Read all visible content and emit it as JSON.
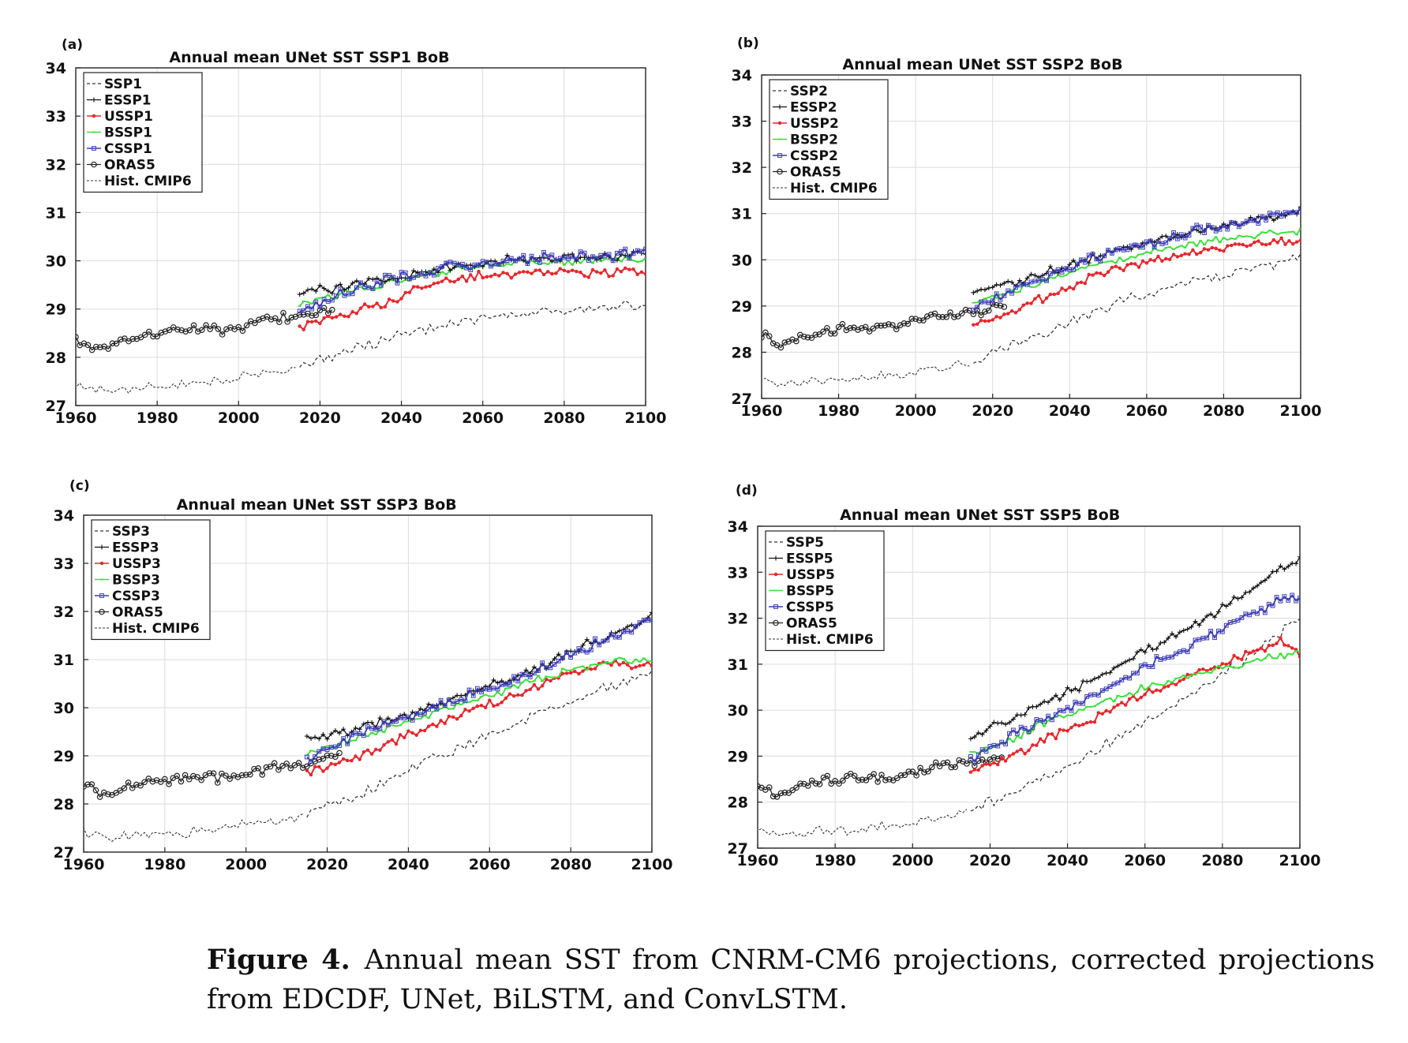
{
  "colors": {
    "scenario": "#333333",
    "edcdf": "#111111",
    "unet": "#e8262b",
    "bilstm": "#39e039",
    "convlstm": "#3c3cb8",
    "oras5": "#222222",
    "hist": "#333333",
    "grid": "#dcdcdc"
  },
  "caption": {
    "label": "Figure 4.",
    "text": "Annual mean SST from CNRM-CM6 projections, corrected projections from EDCDF, UNet, BiLSTM, and ConvLSTM."
  },
  "chart_data": [
    {
      "panel": "(a)",
      "title": "Annual mean UNet SST SSP1 BoB",
      "type": "line",
      "xlim": [
        1960,
        2100
      ],
      "ylim": [
        27,
        34
      ],
      "xticks": [
        1960,
        1980,
        2000,
        2020,
        2040,
        2060,
        2080,
        2100
      ],
      "yticks": [
        27,
        28,
        29,
        30,
        31,
        32,
        33,
        34
      ],
      "grid": true,
      "legend_position": "top-left",
      "legend": [
        "SSP1",
        "ESSP1",
        "USSP1",
        "BSSP1",
        "CSSP1",
        "ORAS5",
        "Hist. CMIP6"
      ],
      "series": [
        {
          "name": "SSP1",
          "x": [
            2015,
            2025,
            2035,
            2045,
            2055,
            2065,
            2075,
            2085,
            2095,
            2100
          ],
          "values": [
            27.8,
            28.1,
            28.35,
            28.55,
            28.75,
            28.85,
            28.95,
            29.0,
            29.05,
            29.0
          ]
        },
        {
          "name": "ESSP1",
          "x": [
            2015,
            2025,
            2035,
            2045,
            2055,
            2065,
            2075,
            2085,
            2095,
            2100
          ],
          "values": [
            29.35,
            29.45,
            29.6,
            29.75,
            29.9,
            30.0,
            30.05,
            30.05,
            30.1,
            30.15
          ]
        },
        {
          "name": "USSP1",
          "x": [
            2015,
            2025,
            2035,
            2045,
            2055,
            2065,
            2075,
            2085,
            2095,
            2100
          ],
          "values": [
            28.65,
            28.85,
            29.1,
            29.45,
            29.65,
            29.7,
            29.75,
            29.75,
            29.8,
            29.75
          ]
        },
        {
          "name": "BSSP1",
          "x": [
            2015,
            2025,
            2035,
            2045,
            2055,
            2065,
            2075,
            2085,
            2095,
            2100
          ],
          "values": [
            29.1,
            29.3,
            29.5,
            29.7,
            29.85,
            29.95,
            30.0,
            30.0,
            30.05,
            30.0
          ]
        },
        {
          "name": "CSSP1",
          "x": [
            2015,
            2025,
            2035,
            2045,
            2055,
            2065,
            2075,
            2085,
            2095,
            2100
          ],
          "values": [
            28.95,
            29.3,
            29.55,
            29.75,
            29.9,
            30.0,
            30.1,
            30.1,
            30.15,
            30.25
          ]
        },
        {
          "name": "ORAS5",
          "x": [
            1958,
            1965,
            1975,
            1985,
            1995,
            2005,
            2015,
            2023
          ],
          "values": [
            28.5,
            28.15,
            28.45,
            28.55,
            28.55,
            28.75,
            28.85,
            29.0
          ]
        },
        {
          "name": "Hist. CMIP6",
          "x": [
            1958,
            1965,
            1975,
            1985,
            1995,
            2005,
            2014
          ],
          "values": [
            27.45,
            27.3,
            27.35,
            27.4,
            27.5,
            27.65,
            27.75
          ]
        }
      ]
    },
    {
      "panel": "(b)",
      "title": "Annual mean UNet SST SSP2 BoB",
      "type": "line",
      "xlim": [
        1960,
        2100
      ],
      "ylim": [
        27,
        34
      ],
      "xticks": [
        1960,
        1980,
        2000,
        2020,
        2040,
        2060,
        2080,
        2100
      ],
      "yticks": [
        27,
        28,
        29,
        30,
        31,
        32,
        33,
        34
      ],
      "grid": true,
      "legend_position": "top-left",
      "legend": [
        "SSP2",
        "ESSP2",
        "USSP2",
        "BSSP2",
        "CSSP2",
        "ORAS5",
        "Hist. CMIP6"
      ],
      "series": [
        {
          "name": "SSP2",
          "x": [
            2015,
            2025,
            2035,
            2045,
            2055,
            2065,
            2075,
            2085,
            2095,
            2100
          ],
          "values": [
            27.8,
            28.15,
            28.45,
            28.8,
            29.15,
            29.4,
            29.6,
            29.8,
            29.95,
            30.0
          ]
        },
        {
          "name": "ESSP2",
          "x": [
            2015,
            2025,
            2035,
            2045,
            2055,
            2065,
            2075,
            2085,
            2095,
            2100
          ],
          "values": [
            29.35,
            29.5,
            29.75,
            30.0,
            30.25,
            30.45,
            30.65,
            30.8,
            30.95,
            31.05
          ]
        },
        {
          "name": "USSP2",
          "x": [
            2015,
            2025,
            2035,
            2045,
            2055,
            2065,
            2075,
            2085,
            2095,
            2100
          ],
          "values": [
            28.6,
            28.9,
            29.25,
            29.6,
            29.85,
            30.05,
            30.2,
            30.3,
            30.4,
            30.35
          ]
        },
        {
          "name": "BSSP2",
          "x": [
            2015,
            2025,
            2035,
            2045,
            2055,
            2065,
            2075,
            2085,
            2095,
            2100
          ],
          "values": [
            29.05,
            29.3,
            29.6,
            29.85,
            30.05,
            30.25,
            30.4,
            30.5,
            30.6,
            30.6
          ]
        },
        {
          "name": "CSSP2",
          "x": [
            2015,
            2025,
            2035,
            2045,
            2055,
            2065,
            2075,
            2085,
            2095,
            2100
          ],
          "values": [
            28.95,
            29.35,
            29.7,
            30.0,
            30.25,
            30.45,
            30.65,
            30.8,
            30.95,
            31.05
          ]
        },
        {
          "name": "ORAS5",
          "x": [
            1958,
            1965,
            1975,
            1985,
            1995,
            2005,
            2015,
            2023
          ],
          "values": [
            28.5,
            28.15,
            28.45,
            28.55,
            28.55,
            28.75,
            28.85,
            29.0
          ]
        },
        {
          "name": "Hist. CMIP6",
          "x": [
            1958,
            1965,
            1975,
            1985,
            1995,
            2005,
            2014
          ],
          "values": [
            27.45,
            27.3,
            27.35,
            27.4,
            27.5,
            27.65,
            27.75
          ]
        }
      ]
    },
    {
      "panel": "(c)",
      "title": "Annual mean UNet SST SSP3 BoB",
      "type": "line",
      "xlim": [
        1960,
        2100
      ],
      "ylim": [
        27,
        34
      ],
      "xticks": [
        1960,
        1980,
        2000,
        2020,
        2040,
        2060,
        2080,
        2100
      ],
      "yticks": [
        27,
        28,
        29,
        30,
        31,
        32,
        33,
        34
      ],
      "grid": true,
      "legend_position": "top-left",
      "legend": [
        "SSP3",
        "ESSP3",
        "USSP3",
        "BSSP3",
        "CSSP3",
        "ORAS5",
        "Hist. CMIP6"
      ],
      "series": [
        {
          "name": "SSP3",
          "x": [
            2015,
            2025,
            2035,
            2045,
            2055,
            2065,
            2075,
            2085,
            2095,
            2100
          ],
          "values": [
            27.8,
            28.1,
            28.5,
            28.9,
            29.25,
            29.6,
            29.95,
            30.3,
            30.6,
            30.75
          ]
        },
        {
          "name": "ESSP3",
          "x": [
            2015,
            2025,
            2035,
            2045,
            2055,
            2065,
            2075,
            2085,
            2095,
            2100
          ],
          "values": [
            29.35,
            29.5,
            29.75,
            30.0,
            30.3,
            30.6,
            30.95,
            31.35,
            31.7,
            31.9
          ]
        },
        {
          "name": "USSP3",
          "x": [
            2015,
            2025,
            2035,
            2045,
            2055,
            2065,
            2075,
            2085,
            2095,
            2100
          ],
          "values": [
            28.65,
            28.9,
            29.25,
            29.6,
            29.95,
            30.25,
            30.55,
            30.85,
            30.9,
            30.9
          ]
        },
        {
          "name": "BSSP3",
          "x": [
            2015,
            2025,
            2035,
            2045,
            2055,
            2065,
            2075,
            2085,
            2095,
            2100
          ],
          "values": [
            29.05,
            29.3,
            29.6,
            29.85,
            30.1,
            30.4,
            30.65,
            30.9,
            31.0,
            31.0
          ]
        },
        {
          "name": "CSSP3",
          "x": [
            2015,
            2025,
            2035,
            2045,
            2055,
            2065,
            2075,
            2085,
            2095,
            2100
          ],
          "values": [
            28.95,
            29.35,
            29.7,
            29.95,
            30.25,
            30.55,
            30.9,
            31.3,
            31.65,
            31.85
          ]
        },
        {
          "name": "ORAS5",
          "x": [
            1958,
            1965,
            1975,
            1985,
            1995,
            2005,
            2015,
            2023
          ],
          "values": [
            28.5,
            28.15,
            28.45,
            28.55,
            28.55,
            28.75,
            28.85,
            29.0
          ]
        },
        {
          "name": "Hist. CMIP6",
          "x": [
            1958,
            1965,
            1975,
            1985,
            1995,
            2005,
            2014
          ],
          "values": [
            27.45,
            27.3,
            27.35,
            27.4,
            27.5,
            27.65,
            27.75
          ]
        }
      ]
    },
    {
      "panel": "(d)",
      "title": "Annual mean UNet SST SSP5 BoB",
      "type": "line",
      "xlim": [
        1960,
        2100
      ],
      "ylim": [
        27,
        34
      ],
      "xticks": [
        1960,
        1980,
        2000,
        2020,
        2040,
        2060,
        2080,
        2100
      ],
      "yticks": [
        27,
        28,
        29,
        30,
        31,
        32,
        33,
        34
      ],
      "grid": true,
      "legend_position": "top-left",
      "legend": [
        "SSP5",
        "ESSP5",
        "USSP5",
        "BSSP5",
        "CSSP5",
        "ORAS5",
        "Hist. CMIP6"
      ],
      "series": [
        {
          "name": "SSP5",
          "x": [
            2015,
            2025,
            2035,
            2045,
            2055,
            2065,
            2075,
            2085,
            2095,
            2100
          ],
          "values": [
            27.85,
            28.15,
            28.55,
            29.0,
            29.5,
            30.0,
            30.5,
            31.05,
            31.7,
            32.05
          ]
        },
        {
          "name": "ESSP5",
          "x": [
            2015,
            2025,
            2035,
            2045,
            2055,
            2065,
            2075,
            2085,
            2095,
            2100
          ],
          "values": [
            29.4,
            29.8,
            30.2,
            30.6,
            31.05,
            31.5,
            31.95,
            32.5,
            33.1,
            33.25
          ]
        },
        {
          "name": "USSP5",
          "x": [
            2015,
            2025,
            2035,
            2045,
            2055,
            2065,
            2075,
            2085,
            2095,
            2100
          ],
          "values": [
            28.7,
            29.0,
            29.4,
            29.75,
            30.15,
            30.5,
            30.85,
            31.15,
            31.5,
            31.25
          ]
        },
        {
          "name": "BSSP5",
          "x": [
            2015,
            2025,
            2035,
            2045,
            2055,
            2065,
            2075,
            2085,
            2095,
            2100
          ],
          "values": [
            29.05,
            29.35,
            29.75,
            30.05,
            30.35,
            30.6,
            30.8,
            31.0,
            31.2,
            31.25
          ]
        },
        {
          "name": "CSSP5",
          "x": [
            2015,
            2025,
            2035,
            2045,
            2055,
            2065,
            2075,
            2085,
            2095,
            2100
          ],
          "values": [
            28.95,
            29.4,
            29.85,
            30.3,
            30.75,
            31.15,
            31.55,
            31.95,
            32.4,
            32.5
          ]
        },
        {
          "name": "ORAS5",
          "x": [
            1958,
            1965,
            1975,
            1985,
            1995,
            2005,
            2015,
            2023
          ],
          "values": [
            28.5,
            28.15,
            28.45,
            28.55,
            28.55,
            28.75,
            28.85,
            29.0
          ]
        },
        {
          "name": "Hist. CMIP6",
          "x": [
            1958,
            1965,
            1975,
            1985,
            1995,
            2005,
            2014
          ],
          "values": [
            27.45,
            27.3,
            27.35,
            27.4,
            27.5,
            27.65,
            27.75
          ]
        }
      ]
    }
  ]
}
